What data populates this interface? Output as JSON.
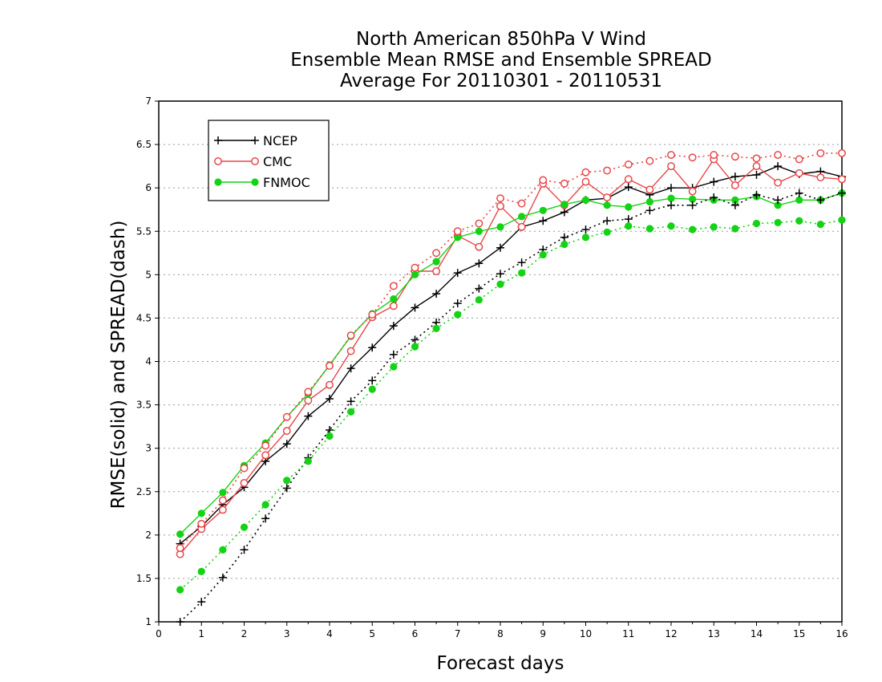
{
  "chart_data": {
    "type": "line",
    "title_lines": [
      "North American 850hPa V Wind",
      "Ensemble Mean RMSE and Ensemble SPREAD",
      "Average For 20110301 - 20110531"
    ],
    "xlabel": "Forecast days",
    "ylabel": "RMSE(solid) and SPREAD(dash)",
    "xlim": [
      0,
      16
    ],
    "ylim": [
      1,
      7
    ],
    "xticks": [
      "0",
      "1",
      "2",
      "3",
      "4",
      "5",
      "6",
      "7",
      "8",
      "9",
      "10",
      "11",
      "12",
      "13",
      "14",
      "15",
      "16"
    ],
    "yticks": [
      "1",
      "1.5",
      "2",
      "2.5",
      "3",
      "3.5",
      "4",
      "4.5",
      "5",
      "5.5",
      "6",
      "6.5",
      "7"
    ],
    "grid": true,
    "legend_position": "top-left",
    "series": [
      {
        "name": "NCEP",
        "color": "#000000",
        "marker": "plus",
        "style": "solid",
        "x": [
          0.5,
          1,
          1.5,
          2,
          2.5,
          3,
          3.5,
          4,
          4.5,
          5,
          5.5,
          6,
          6.5,
          7,
          7.5,
          8,
          8.5,
          9,
          9.5,
          10,
          10.5,
          11,
          11.5,
          12,
          12.5,
          13,
          13.5,
          14,
          14.5,
          15,
          15.5,
          16
        ],
        "y": [
          1.9,
          2.1,
          2.35,
          2.55,
          2.85,
          3.05,
          3.37,
          3.57,
          3.92,
          4.16,
          4.41,
          4.62,
          4.78,
          5.02,
          5.13,
          5.31,
          5.55,
          5.62,
          5.72,
          5.86,
          5.88,
          6.01,
          5.92,
          6.0,
          6.0,
          6.07,
          6.13,
          6.15,
          6.25,
          6.16,
          6.19,
          6.13
        ]
      },
      {
        "name": "CMC",
        "color": "#e8474a",
        "marker": "circle-open",
        "style": "solid",
        "x": [
          0.5,
          1,
          1.5,
          2,
          2.5,
          3,
          3.5,
          4,
          4.5,
          5,
          5.5,
          6,
          6.5,
          7,
          7.5,
          8,
          8.5,
          9,
          9.5,
          10,
          10.5,
          11,
          11.5,
          12,
          12.5,
          13,
          13.5,
          14,
          14.5,
          15,
          15.5,
          16
        ],
        "y": [
          1.78,
          2.07,
          2.29,
          2.6,
          2.92,
          3.2,
          3.55,
          3.73,
          4.12,
          4.51,
          4.64,
          5.04,
          5.04,
          5.45,
          5.32,
          5.79,
          5.55,
          6.05,
          5.8,
          6.07,
          5.89,
          6.1,
          5.98,
          6.25,
          5.96,
          6.33,
          6.03,
          6.25,
          6.06,
          6.17,
          6.12,
          6.1
        ]
      },
      {
        "name": "FNMOC",
        "color": "#14d214",
        "marker": "circle-filled",
        "style": "solid",
        "x": [
          0.5,
          1,
          1.5,
          2,
          2.5,
          3,
          3.5,
          4,
          4.5,
          5,
          5.5,
          6,
          6.5,
          7,
          7.5,
          8,
          8.5,
          9,
          9.5,
          10,
          10.5,
          11,
          11.5,
          12,
          12.5,
          13,
          13.5,
          14,
          14.5,
          15,
          15.5,
          16
        ],
        "y": [
          2.01,
          2.25,
          2.49,
          2.8,
          3.06,
          3.36,
          3.63,
          3.96,
          4.29,
          4.55,
          4.72,
          5.0,
          5.15,
          5.43,
          5.5,
          5.55,
          5.67,
          5.74,
          5.81,
          5.86,
          5.8,
          5.78,
          5.84,
          5.88,
          5.87,
          5.86,
          5.86,
          5.9,
          5.8,
          5.86,
          5.86,
          5.94
        ]
      },
      {
        "name": "NCEP spread",
        "color": "#000000",
        "marker": "plus",
        "style": "dashed",
        "x": [
          0.5,
          1,
          1.5,
          2,
          2.5,
          3,
          3.5,
          4,
          4.5,
          5,
          5.5,
          6,
          6.5,
          7,
          7.5,
          8,
          8.5,
          9,
          9.5,
          10,
          10.5,
          11,
          11.5,
          12,
          12.5,
          13,
          13.5,
          14,
          14.5,
          15,
          15.5,
          16
        ],
        "y": [
          1.0,
          1.23,
          1.51,
          1.83,
          2.19,
          2.54,
          2.89,
          3.21,
          3.54,
          3.78,
          4.08,
          4.25,
          4.45,
          4.67,
          4.84,
          5.01,
          5.14,
          5.29,
          5.43,
          5.52,
          5.62,
          5.64,
          5.74,
          5.8,
          5.8,
          5.89,
          5.8,
          5.92,
          5.86,
          5.94,
          5.86,
          5.94
        ]
      },
      {
        "name": "CMC spread",
        "color": "#e8474a",
        "marker": "circle-open",
        "style": "dashed",
        "x": [
          0.5,
          1,
          1.5,
          2,
          2.5,
          3,
          3.5,
          4,
          4.5,
          5,
          5.5,
          6,
          6.5,
          7,
          7.5,
          8,
          8.5,
          9,
          9.5,
          10,
          10.5,
          11,
          11.5,
          12,
          12.5,
          13,
          13.5,
          14,
          14.5,
          15,
          15.5,
          16
        ],
        "y": [
          1.85,
          2.13,
          2.4,
          2.77,
          3.03,
          3.36,
          3.65,
          3.95,
          4.3,
          4.54,
          4.87,
          5.08,
          5.25,
          5.5,
          5.59,
          5.88,
          5.82,
          6.09,
          6.05,
          6.18,
          6.2,
          6.27,
          6.31,
          6.38,
          6.35,
          6.38,
          6.36,
          6.34,
          6.38,
          6.33,
          6.4,
          6.4
        ]
      },
      {
        "name": "FNMOC spread",
        "color": "#14d214",
        "marker": "circle-filled",
        "style": "dashed",
        "x": [
          0.5,
          1,
          1.5,
          2,
          2.5,
          3,
          3.5,
          4,
          4.5,
          5,
          5.5,
          6,
          6.5,
          7,
          7.5,
          8,
          8.5,
          9,
          9.5,
          10,
          10.5,
          11,
          11.5,
          12,
          12.5,
          13,
          13.5,
          14,
          14.5,
          15,
          15.5,
          16
        ],
        "y": [
          1.37,
          1.58,
          1.83,
          2.09,
          2.35,
          2.63,
          2.85,
          3.14,
          3.42,
          3.68,
          3.94,
          4.17,
          4.38,
          4.54,
          4.71,
          4.89,
          5.02,
          5.23,
          5.35,
          5.43,
          5.49,
          5.56,
          5.53,
          5.56,
          5.52,
          5.55,
          5.53,
          5.59,
          5.6,
          5.62,
          5.58,
          5.63
        ]
      }
    ],
    "legend": [
      "NCEP",
      "CMC",
      "FNMOC"
    ]
  }
}
